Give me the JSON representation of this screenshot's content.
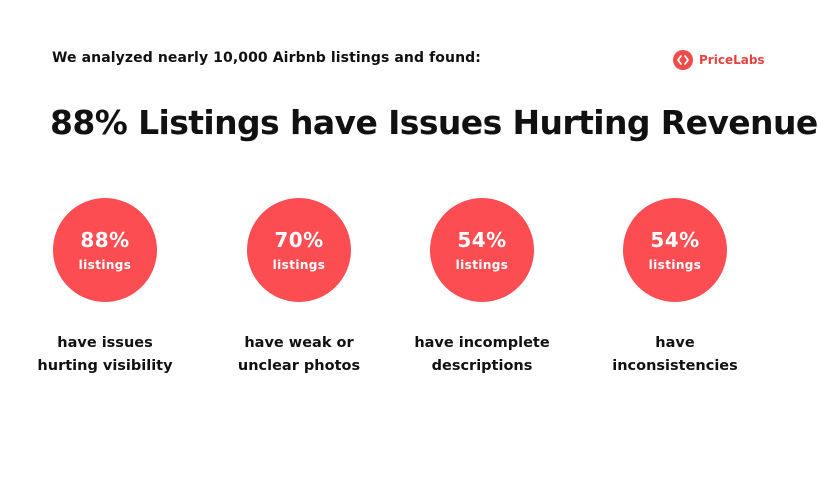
{
  "intro": "We analyzed nearly 10,000 Airbnb listings and found:",
  "brand": {
    "name": "PriceLabs",
    "logo_icon": "pricelabs-logo-icon",
    "color": "#f04a49"
  },
  "headline": "88% Listings have Issues Hurting Revenue",
  "accent_color": "#fb4d52",
  "stats": [
    {
      "value": "88%",
      "unit": "listings",
      "caption_line1": "have issues",
      "caption_line2": "hurting visibility"
    },
    {
      "value": "70%",
      "unit": "listings",
      "caption_line1": "have weak or",
      "caption_line2": "unclear photos"
    },
    {
      "value": "54%",
      "unit": "listings",
      "caption_line1": "have incomplete",
      "caption_line2": "descriptions"
    },
    {
      "value": "54%",
      "unit": "listings",
      "caption_line1": "have",
      "caption_line2": "inconsistencies"
    }
  ]
}
